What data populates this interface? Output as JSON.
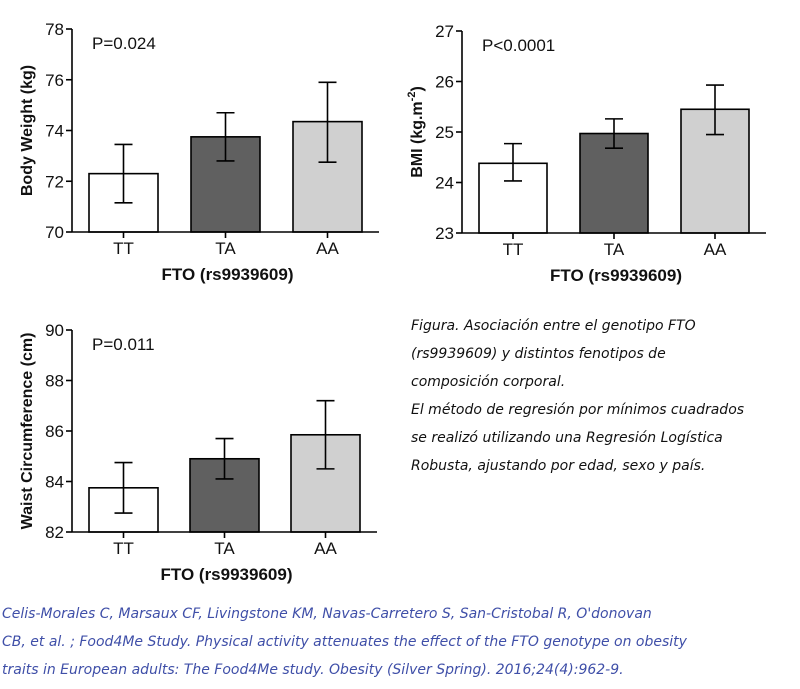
{
  "chart_data": [
    {
      "type": "bar",
      "categories": [
        "TT",
        "TA",
        "AA"
      ],
      "values": [
        72.3,
        73.75,
        74.35
      ],
      "error_low": [
        71.15,
        72.8,
        72.75
      ],
      "error_high": [
        73.45,
        74.7,
        75.9
      ],
      "bar_colors": [
        "#ffffff",
        "#606060",
        "#d0d0d0"
      ],
      "ylim": [
        70,
        78
      ],
      "yticks": [
        "70",
        "72",
        "74",
        "76",
        "78"
      ],
      "ylabel": "Body Weight (kg)",
      "ylabel_sup": "",
      "ylabel_suffix": "",
      "xlabel": "FTO (rs9939609)",
      "annotation": "P=0.024"
    },
    {
      "type": "bar",
      "categories": [
        "TT",
        "TA",
        "AA"
      ],
      "values": [
        24.38,
        24.97,
        25.45
      ],
      "error_low": [
        24.03,
        24.68,
        24.95
      ],
      "error_high": [
        24.77,
        25.26,
        25.93
      ],
      "bar_colors": [
        "#ffffff",
        "#606060",
        "#d0d0d0"
      ],
      "ylim": [
        23,
        27
      ],
      "yticks": [
        "23",
        "24",
        "25",
        "26",
        "27"
      ],
      "ylabel": "BMI (kg.m",
      "ylabel_sup": "-2",
      "ylabel_suffix": ")",
      "xlabel": "FTO (rs9939609)",
      "annotation": "P<0.0001"
    },
    {
      "type": "bar",
      "categories": [
        "TT",
        "TA",
        "AA"
      ],
      "values": [
        83.75,
        84.9,
        85.85
      ],
      "error_low": [
        82.75,
        84.1,
        84.5
      ],
      "error_high": [
        84.75,
        85.7,
        87.2
      ],
      "bar_colors": [
        "#ffffff",
        "#606060",
        "#d0d0d0"
      ],
      "ylim": [
        82,
        90
      ],
      "yticks": [
        "82",
        "84",
        "86",
        "88",
        "90"
      ],
      "ylabel": "Waist Circumference (cm)",
      "ylabel_sup": "",
      "ylabel_suffix": "",
      "xlabel": "FTO (rs9939609)",
      "annotation": "P=0.011"
    }
  ],
  "caption": {
    "lines": [
      "Figura. Asociación entre el genotipo FTO",
      "(rs9939609) y distintos fenotipos de",
      "composición corporal.",
      "El método de regresión por mínimos cuadrados",
      "se realizó utilizando una Regresión Logística",
      "Robusta, ajustando por edad, sexo y país."
    ]
  },
  "citation": {
    "lines": [
      "Celis-Morales C, Marsaux CF, Livingstone KM, Navas-Carretero S, San-Cristobal  R, O'donovan",
      "CB, et al. ; Food4Me Study. Physical activity attenuates the effect of the FTO genotype on obesity",
      "traits in European adults: The Food4Me study. Obesity (Silver Spring). 2016;24(4):962-9."
    ]
  }
}
